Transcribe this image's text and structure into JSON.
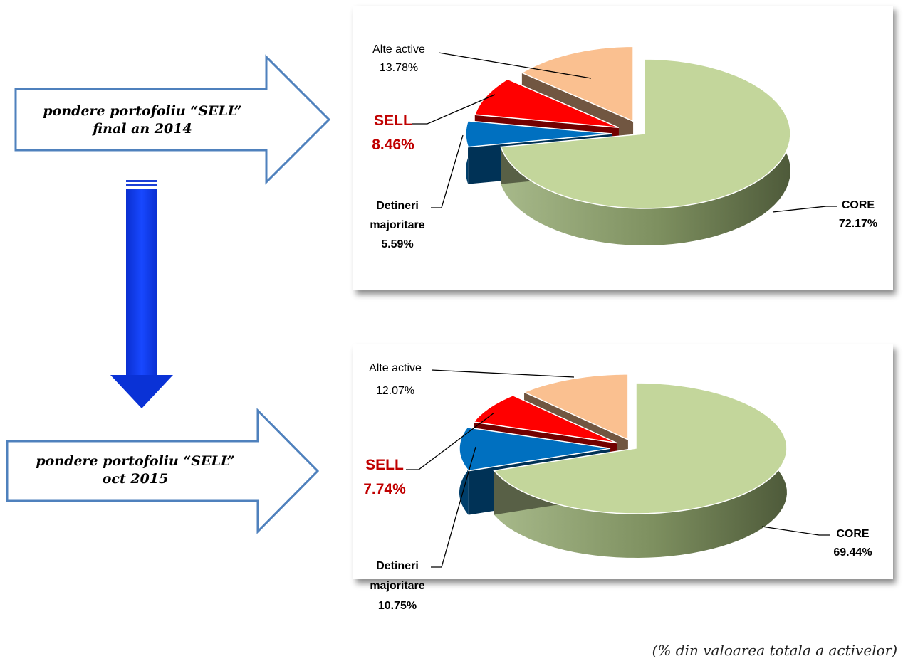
{
  "arrows": [
    {
      "line1": "pondere portofoliu “SELL”",
      "line2": "final an 2014"
    },
    {
      "line1": "pondere portofoliu “SELL”",
      "line2": "oct 2015"
    }
  ],
  "chart_data": [
    {
      "type": "pie",
      "categories": [
        "CORE",
        "Detineri majoritare",
        "SELL",
        "Alte active"
      ],
      "values": [
        72.17,
        5.59,
        8.46,
        13.78
      ],
      "labels": {
        "core": {
          "name": "CORE",
          "pct": "72.17%"
        },
        "detineri": {
          "line1": "Detineri",
          "line2": "majoritare",
          "pct": "5.59%"
        },
        "sell": {
          "name": "SELL",
          "pct": "8.46%"
        },
        "alte": {
          "name": "Alte active",
          "pct": "13.78%"
        }
      },
      "colors": [
        "#c3d69b",
        "#0070c0",
        "#ff0000",
        "#fac090"
      ]
    },
    {
      "type": "pie",
      "categories": [
        "CORE",
        "Detineri majoritare",
        "SELL",
        "Alte active"
      ],
      "values": [
        69.44,
        10.75,
        7.74,
        12.07
      ],
      "labels": {
        "core": {
          "name": "CORE",
          "pct": "69.44%"
        },
        "detineri": {
          "line1": "Detineri",
          "line2": "majoritare",
          "pct": "10.75%"
        },
        "sell": {
          "name": "SELL",
          "pct": "7.74%"
        },
        "alte": {
          "name": "Alte active",
          "pct": "12.07%"
        }
      },
      "colors": [
        "#c3d69b",
        "#0070c0",
        "#ff0000",
        "#fac090"
      ]
    }
  ],
  "caption": "(% din valoarea totala a activelor)"
}
